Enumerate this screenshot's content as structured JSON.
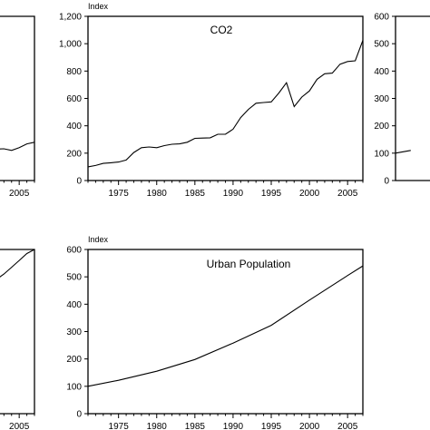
{
  "chart_data": [
    {
      "type": "line",
      "title": "CO2",
      "ylabel": "Index",
      "x": [
        1971,
        1972,
        1973,
        1974,
        1975,
        1976,
        1977,
        1978,
        1979,
        1980,
        1981,
        1982,
        1983,
        1984,
        1985,
        1986,
        1987,
        1988,
        1989,
        1990,
        1991,
        1992,
        1993,
        1994,
        1995,
        1996,
        1997,
        1998,
        1999,
        2000,
        2001,
        2002,
        2003,
        2004,
        2005,
        2006,
        2007
      ],
      "values": [
        100,
        110,
        125,
        130,
        135,
        150,
        205,
        240,
        245,
        240,
        255,
        265,
        268,
        280,
        308,
        310,
        312,
        338,
        338,
        375,
        460,
        520,
        565,
        570,
        575,
        640,
        715,
        540,
        610,
        655,
        740,
        780,
        785,
        850,
        870,
        875,
        1025
      ],
      "ylim": [
        0,
        1200
      ],
      "xlim": [
        1971,
        2007
      ],
      "yticks": [
        "0",
        "200",
        "400",
        "600",
        "800",
        "1,000",
        "1,200"
      ],
      "xticks": [
        "1975",
        "1980",
        "1985",
        "1990",
        "1995",
        "2000",
        "2005"
      ],
      "grid": false
    },
    {
      "type": "line",
      "title": "Urban Population",
      "ylabel": "Index",
      "x": [
        1971,
        1975,
        1980,
        1985,
        1990,
        1995,
        2000,
        2005,
        2007
      ],
      "values": [
        100,
        122,
        155,
        198,
        258,
        323,
        415,
        505,
        540
      ],
      "ylim": [
        0,
        600
      ],
      "xlim": [
        1971,
        2007
      ],
      "yticks": [
        "0",
        "100",
        "200",
        "300",
        "400",
        "500",
        "600"
      ],
      "xticks": [
        "1975",
        "1980",
        "1985",
        "1990",
        "1995",
        "2000",
        "2005"
      ],
      "grid": false
    },
    {
      "type": "line",
      "ylim": [
        0,
        1200
      ],
      "xlim": [
        1971,
        2007
      ],
      "x": [
        2001,
        2002,
        2003,
        2004,
        2005,
        2006,
        2007
      ],
      "values": [
        235,
        230,
        232,
        220,
        240,
        268,
        280
      ],
      "xticks": [
        "2005"
      ],
      "grid": false
    },
    {
      "type": "line",
      "ylim": [
        0,
        600
      ],
      "xlim": [
        1971,
        2007
      ],
      "x": [
        2001,
        2002,
        2003,
        2004,
        2005,
        2006,
        2007
      ],
      "values": [
        470,
        490,
        510,
        535,
        560,
        585,
        600
      ],
      "xticks": [
        "2005"
      ],
      "grid": false
    },
    {
      "type": "line",
      "ylim": [
        0,
        600
      ],
      "yticks": [
        "0",
        "100",
        "200",
        "300",
        "400",
        "500",
        "600"
      ],
      "x": [
        1971,
        1972,
        1973
      ],
      "values": [
        100,
        105,
        110
      ],
      "grid": false
    }
  ]
}
